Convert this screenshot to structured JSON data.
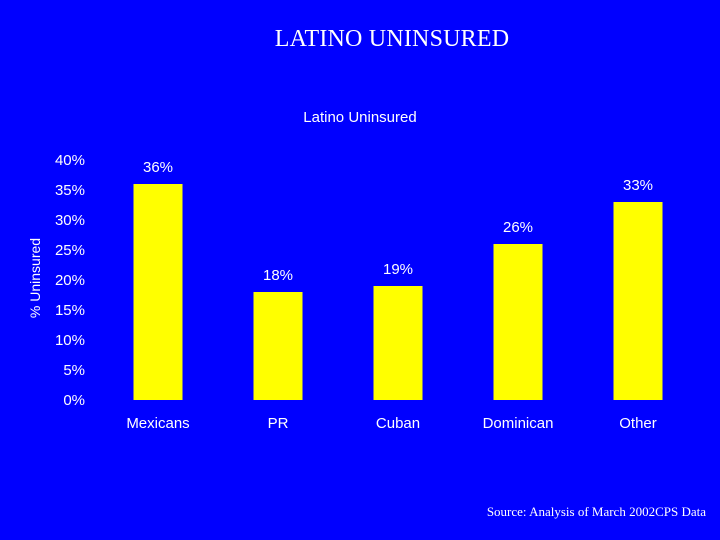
{
  "slide": {
    "title": "LATINO UNINSURED",
    "source": "Source: Analysis of March 2002CPS Data"
  },
  "colors": {
    "background": "#0000ff",
    "bar": "#ffff00",
    "text": "#ffffff"
  },
  "chart_data": {
    "type": "bar",
    "title": "Latino Uninsured",
    "ylabel": "% Uninsured",
    "xlabel": "",
    "categories": [
      "Mexicans",
      "PR",
      "Cuban",
      "Dominican",
      "Other"
    ],
    "values": [
      36,
      18,
      19,
      26,
      33
    ],
    "value_labels": [
      "36%",
      "18%",
      "19%",
      "26%",
      "33%"
    ],
    "ylim": [
      0,
      40
    ],
    "yticks": [
      0,
      5,
      10,
      15,
      20,
      25,
      30,
      35,
      40
    ],
    "ytick_labels": [
      "0%",
      "5%",
      "10%",
      "15%",
      "20%",
      "25%",
      "30%",
      "35%",
      "40%"
    ],
    "grid": false,
    "legend": "none"
  }
}
